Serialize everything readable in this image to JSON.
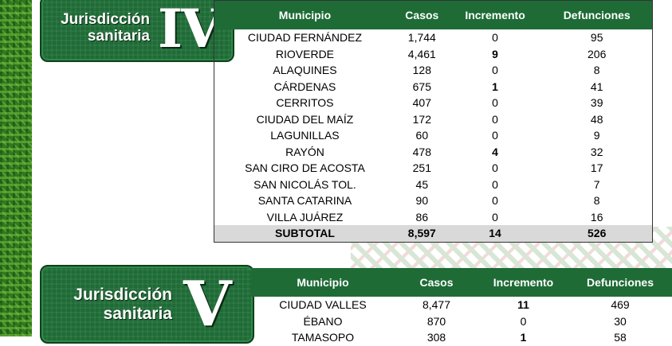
{
  "jurisdiction_iv": {
    "label_line1": "Jurisdicción",
    "label_line2": "sanitaria",
    "numeral": "IV",
    "headers": [
      "Municipio",
      "Casos",
      "Incremento",
      "Defunciones"
    ],
    "rows": [
      {
        "municipio": "CIUDAD FERNÁNDEZ",
        "casos": "1,744",
        "incremento": "0",
        "defunciones": "95"
      },
      {
        "municipio": "RIOVERDE",
        "casos": "4,461",
        "incremento": "9",
        "defunciones": "206"
      },
      {
        "municipio": "ALAQUINES",
        "casos": "128",
        "incremento": "0",
        "defunciones": "8"
      },
      {
        "municipio": "CÁRDENAS",
        "casos": "675",
        "incremento": "1",
        "defunciones": "41"
      },
      {
        "municipio": "CERRITOS",
        "casos": "407",
        "incremento": "0",
        "defunciones": "39"
      },
      {
        "municipio": "CIUDAD DEL MAÍZ",
        "casos": "172",
        "incremento": "0",
        "defunciones": "48"
      },
      {
        "municipio": "LAGUNILLAS",
        "casos": "60",
        "incremento": "0",
        "defunciones": "9"
      },
      {
        "municipio": "RAYÓN",
        "casos": "478",
        "incremento": "4",
        "defunciones": "32"
      },
      {
        "municipio": "SAN CIRO DE ACOSTA",
        "casos": "251",
        "incremento": "0",
        "defunciones": "17"
      },
      {
        "municipio": "SAN NICOLÁS TOL.",
        "casos": "45",
        "incremento": "0",
        "defunciones": "7"
      },
      {
        "municipio": "SANTA CATARINA",
        "casos": "90",
        "incremento": "0",
        "defunciones": "8"
      },
      {
        "municipio": "VILLA JUÁREZ",
        "casos": "86",
        "incremento": "0",
        "defunciones": "16"
      }
    ],
    "subtotal": {
      "label": "SUBTOTAL",
      "casos": "8,597",
      "incremento": "14",
      "defunciones": "526"
    }
  },
  "jurisdiction_v": {
    "label_line1": "Jurisdicción",
    "label_line2": "sanitaria",
    "numeral": "V",
    "headers": [
      "Municipio",
      "Casos",
      "Incremento",
      "Defunciones"
    ],
    "rows": [
      {
        "municipio": "CIUDAD VALLES",
        "casos": "8,477",
        "incremento": "11",
        "defunciones": "469"
      },
      {
        "municipio": "ÉBANO",
        "casos": "870",
        "incremento": "0",
        "defunciones": "30"
      },
      {
        "municipio": "TAMASOPO",
        "casos": "308",
        "incremento": "1",
        "defunciones": "58"
      }
    ]
  },
  "colors": {
    "header_green": "#1e6b36",
    "subtotal_gray": "#d9d9d9",
    "pattern_green": "#2f7a1e"
  }
}
